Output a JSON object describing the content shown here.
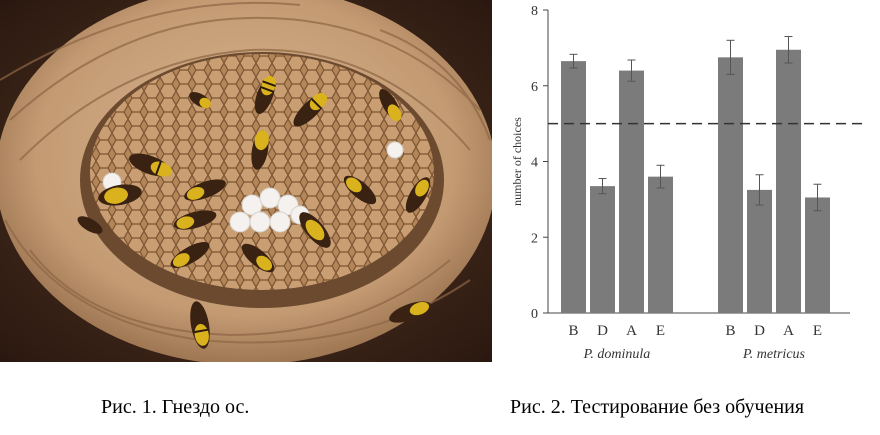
{
  "figure1": {
    "caption": "Рис. 1. Гнездо ос."
  },
  "figure2": {
    "caption": "Рис. 2. Тестирование без обучения"
  },
  "colors": {
    "bar": "#7b7b7b",
    "comb": "#b98c5f",
    "paper": "#c9a47f",
    "dark": "#2a1a10",
    "wasp": "#d9b21d"
  },
  "chart_data": {
    "type": "bar",
    "ylabel": "number of choices",
    "ylim": [
      0,
      8
    ],
    "yticks": [
      0,
      2,
      4,
      6,
      8
    ],
    "reference_line": 5,
    "groups": [
      {
        "name": "P. dominula",
        "categories": [
          "B",
          "D",
          "A",
          "E"
        ],
        "values": [
          6.65,
          3.35,
          6.4,
          3.6
        ],
        "errors": [
          0.18,
          0.2,
          0.28,
          0.3
        ]
      },
      {
        "name": "P. metricus",
        "categories": [
          "B",
          "D",
          "A",
          "E"
        ],
        "values": [
          6.75,
          3.25,
          6.95,
          3.05
        ],
        "errors": [
          0.45,
          0.4,
          0.35,
          0.35
        ]
      }
    ]
  }
}
